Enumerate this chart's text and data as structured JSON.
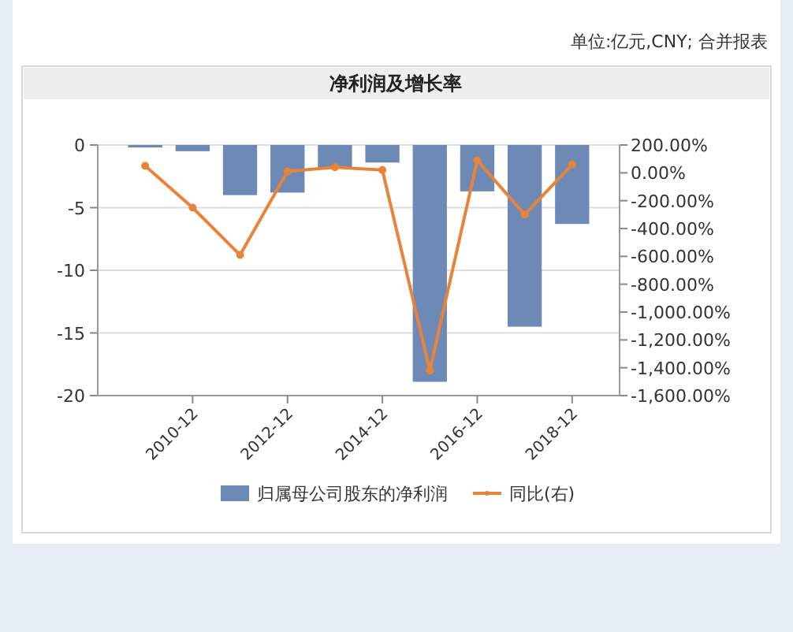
{
  "chart_data": {
    "type": "bar",
    "title": "净利润及增长率",
    "annotations": [
      "单位:亿元,CNY; 合并报表"
    ],
    "categories": [
      null,
      "2010-12",
      null,
      "2012-12",
      null,
      "2014-12",
      null,
      "2016-12",
      null,
      "2018-12"
    ],
    "series": [
      {
        "name": "归属母公司股东的净利润",
        "color": "#6d8ab6",
        "values": [
          -0.2,
          -0.5,
          -4.0,
          -3.8,
          -1.8,
          -1.4,
          -18.9,
          -3.7,
          -14.5,
          -6.3
        ]
      },
      {
        "name": "同比(右)",
        "type": "line",
        "axis": "y2",
        "color": "#e8843a",
        "marker": "circle",
        "values": [
          50,
          -250,
          -590,
          10,
          40,
          20,
          -1420,
          90,
          -300,
          60
        ]
      }
    ],
    "ylim": [
      -20,
      0
    ],
    "yticks": [
      -20,
      -15,
      -10,
      -5,
      0
    ],
    "y2lim": [
      -1600,
      200
    ],
    "y2ticks": [
      {
        "value": -1600,
        "label": "-1,600.00%"
      },
      {
        "value": -1400,
        "label": "-1,400.00%"
      },
      {
        "value": -1200,
        "label": "-1,200.00%"
      },
      {
        "value": -1000,
        "label": "-1,000.00%"
      },
      {
        "value": -800,
        "label": "-800.00%"
      },
      {
        "value": -600,
        "label": "-600.00%"
      },
      {
        "value": -400,
        "label": "-400.00%"
      },
      {
        "value": -200,
        "label": "-200.00%"
      },
      {
        "value": 0,
        "label": "0.00%"
      },
      {
        "value": 200,
        "label": "200.00%"
      }
    ],
    "grid": "y",
    "legend": "bottom"
  }
}
